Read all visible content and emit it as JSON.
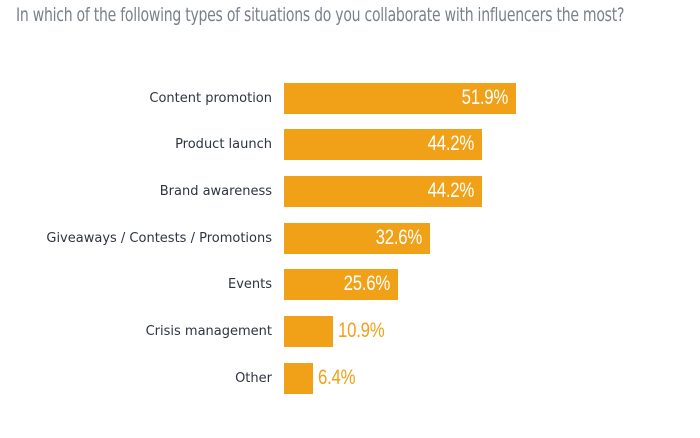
{
  "chart_data": {
    "type": "bar",
    "orientation": "horizontal",
    "title": "In which of the following types of situations do you collaborate with influencers the most?",
    "xlabel": "",
    "ylabel": "",
    "categories": [
      "Content promotion",
      "Product launch",
      "Brand awareness",
      "Giveaways / Contests / Promotions",
      "Events",
      "Crisis management",
      "Other"
    ],
    "values": [
      51.9,
      44.2,
      44.2,
      32.6,
      25.6,
      10.9,
      6.4
    ],
    "value_labels": [
      "51.9%",
      "44.2%",
      "44.2%",
      "32.6%",
      "25.6%",
      "10.9%",
      "6.4%"
    ],
    "unit": "%",
    "grid": false,
    "legend": null,
    "bar_color": "#f0a118"
  },
  "colors": {
    "bar": "#f0a118",
    "title": "#7a8088",
    "label": "#2e3440",
    "inside_value": "#ffffff"
  }
}
